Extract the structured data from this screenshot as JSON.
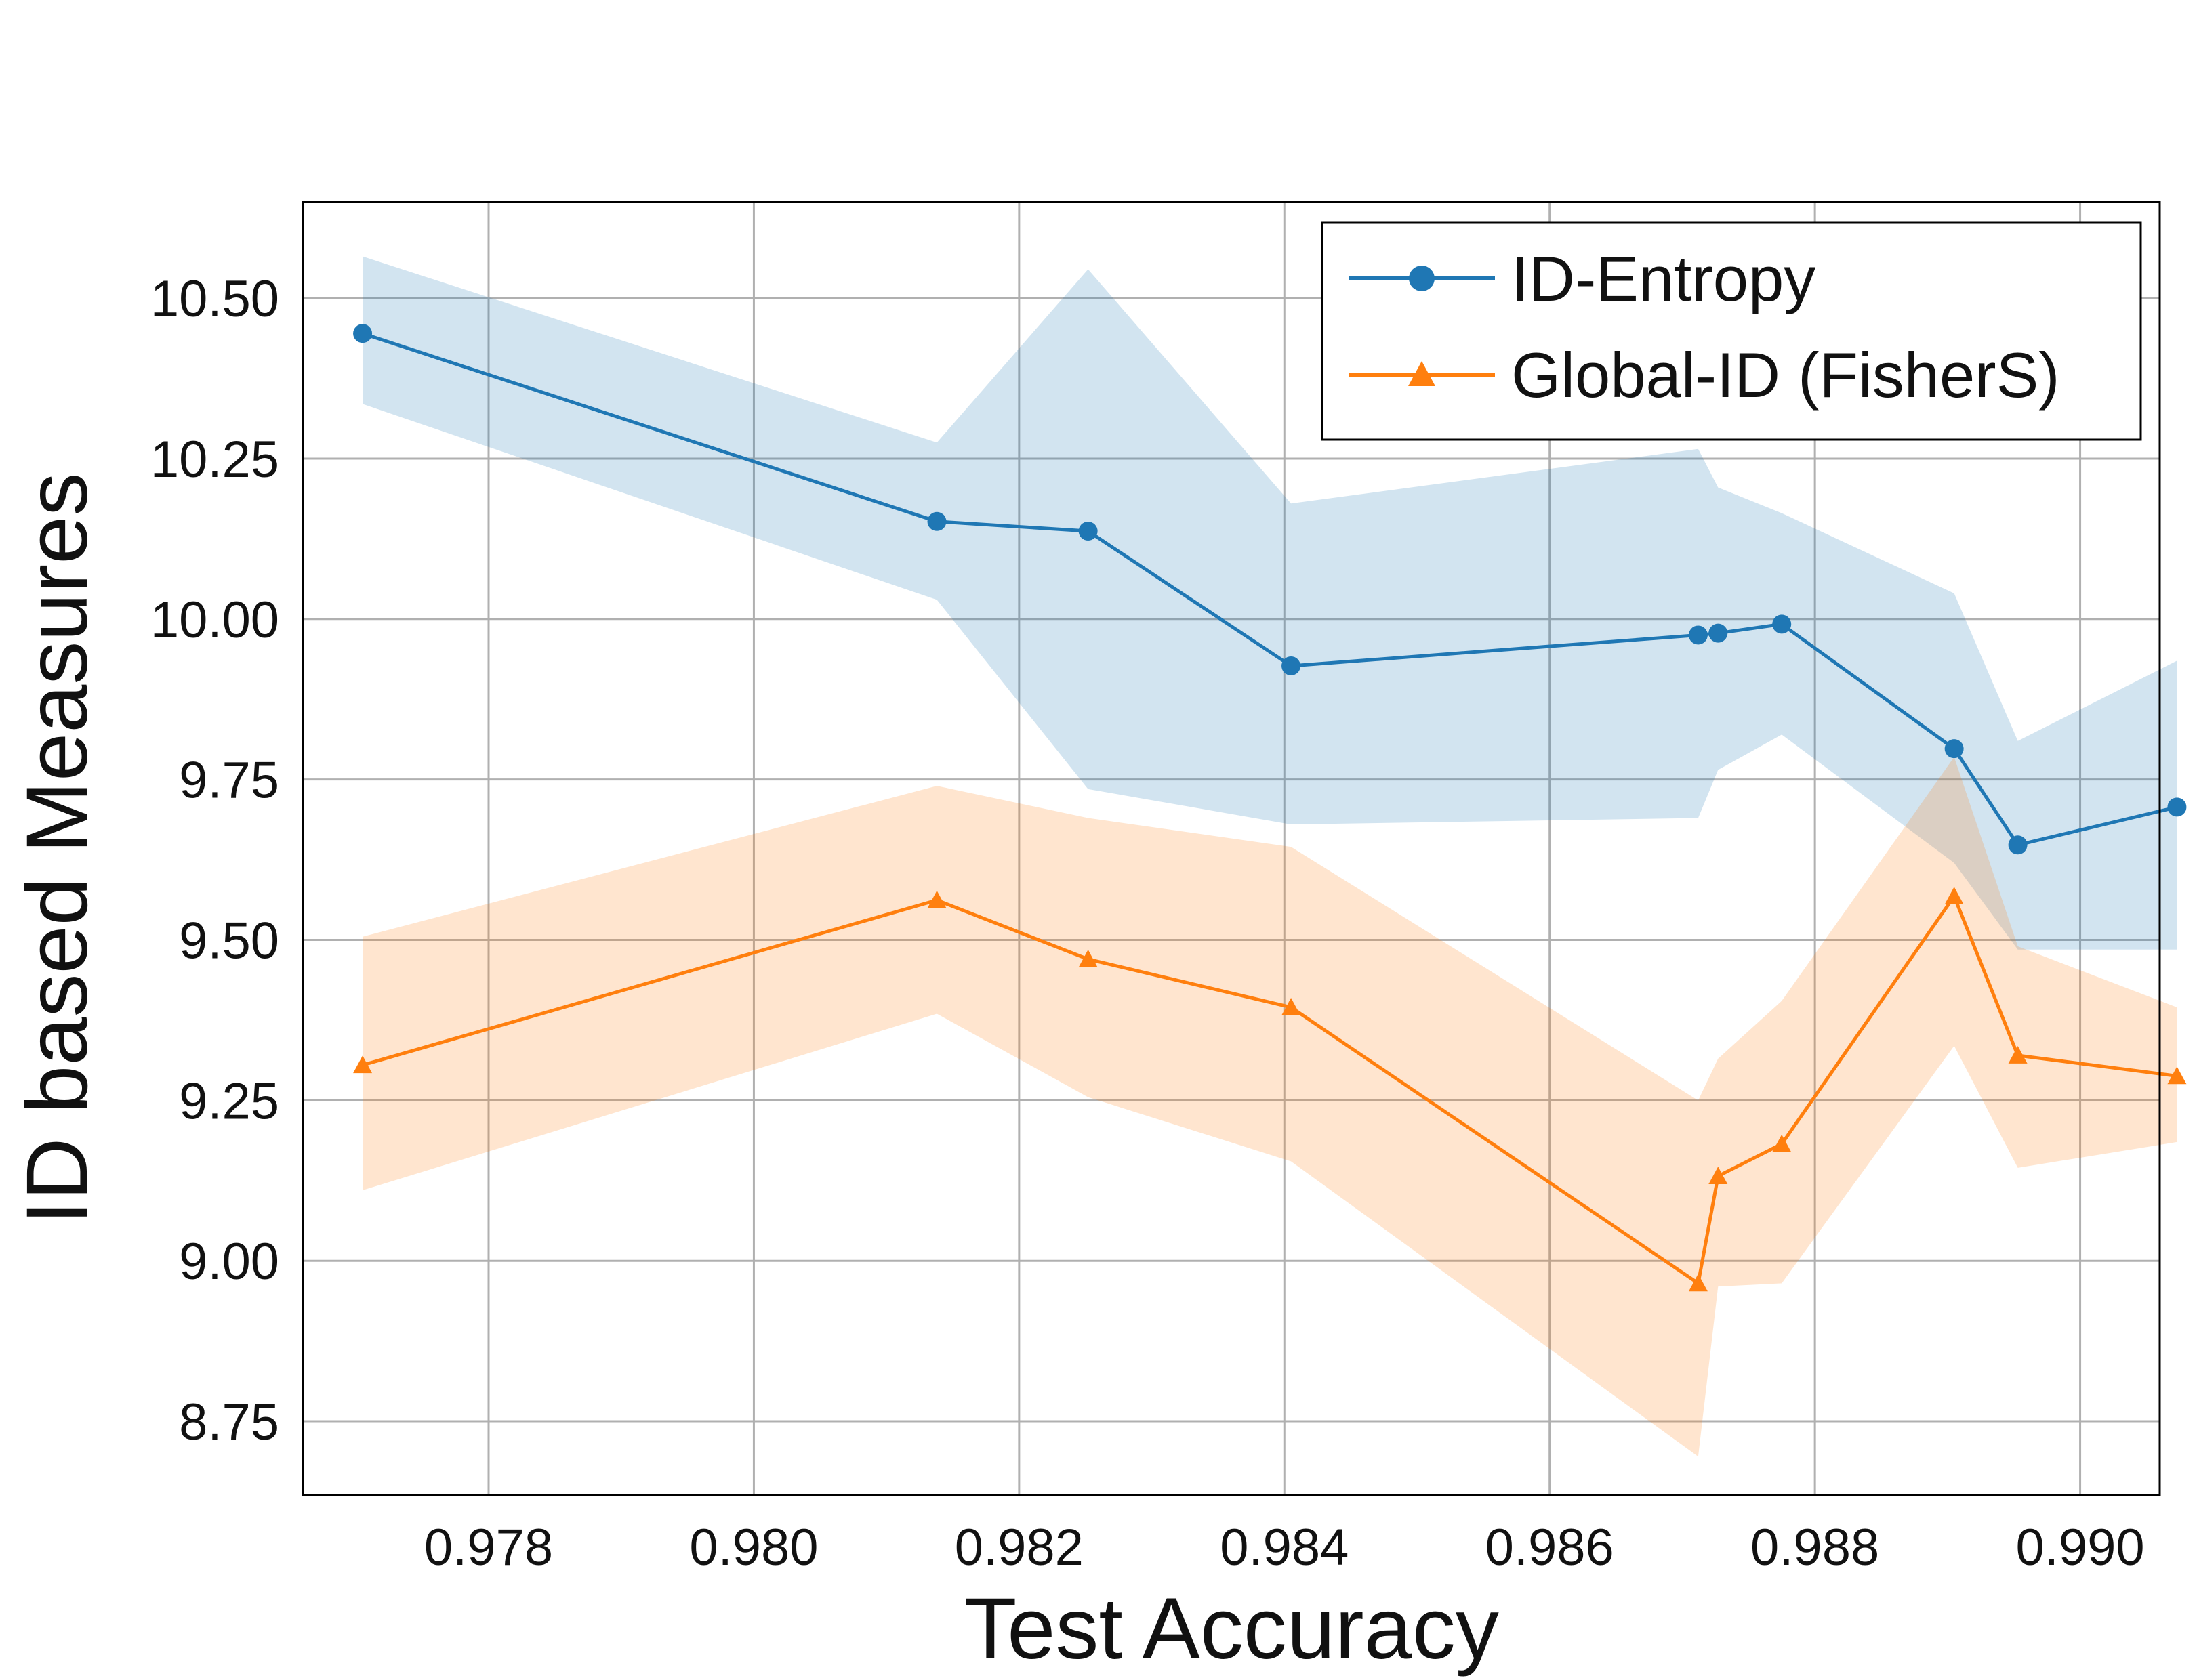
{
  "chart_data": {
    "type": "line",
    "title": "",
    "xlabel": "Test Accuracy",
    "ylabel": "ID based Measures",
    "xlim": [
      0.9766,
      0.9906
    ],
    "ylim": [
      8.635,
      10.65
    ],
    "xticks": [
      0.978,
      0.98,
      0.982,
      0.984,
      0.986,
      0.988,
      0.99
    ],
    "xtick_labels": [
      "0.978",
      "0.980",
      "0.982",
      "0.984",
      "0.986",
      "0.988",
      "0.990"
    ],
    "yticks": [
      8.75,
      9.0,
      9.25,
      9.5,
      9.75,
      10.0,
      10.25,
      10.5
    ],
    "ytick_labels": [
      "8.75",
      "9.00",
      "9.25",
      "9.50",
      "9.75",
      "10.00",
      "10.25",
      "10.50"
    ],
    "grid": true,
    "legend_position": "top-right",
    "series": [
      {
        "name": "ID-Entropy",
        "color": "#1f77b4",
        "band_color": "#1f77b4",
        "marker": "circle",
        "x": [
          0.97705,
          0.98138,
          0.98252,
          0.98405,
          0.98712,
          0.98727,
          0.98775,
          0.98905,
          0.98953,
          0.99073
        ],
        "y": [
          10.445,
          10.152,
          10.137,
          9.927,
          9.975,
          9.978,
          9.992,
          9.798,
          9.648,
          9.707
        ],
        "lower": [
          10.335,
          10.03,
          9.735,
          9.68,
          9.69,
          9.765,
          9.82,
          9.62,
          9.485,
          9.485
        ],
        "upper": [
          10.565,
          10.275,
          10.545,
          10.18,
          10.265,
          10.205,
          10.165,
          10.04,
          9.81,
          9.935
        ]
      },
      {
        "name": "Global-ID (FisherS)",
        "color": "#ff7f0e",
        "band_color": "#ff7f0e",
        "marker": "triangle",
        "x": [
          0.97705,
          0.98138,
          0.98252,
          0.98405,
          0.98712,
          0.98727,
          0.98775,
          0.98905,
          0.98953,
          0.99073
        ],
        "y": [
          9.305,
          9.562,
          9.47,
          9.395,
          8.965,
          9.132,
          9.182,
          9.568,
          9.32,
          9.288
        ],
        "lower": [
          9.11,
          9.385,
          9.255,
          9.155,
          8.695,
          8.96,
          8.965,
          9.335,
          9.145,
          9.185
        ],
        "upper": [
          9.505,
          9.74,
          9.69,
          9.645,
          9.25,
          9.315,
          9.405,
          9.785,
          9.49,
          9.395
        ]
      }
    ]
  }
}
